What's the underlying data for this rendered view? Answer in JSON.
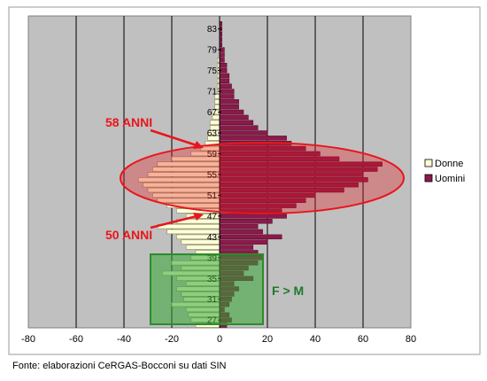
{
  "chart_data": {
    "type": "bar",
    "orientation": "horizontal-population-pyramid",
    "xlim": [
      -80,
      80
    ],
    "x_ticks": [
      -80,
      -60,
      -40,
      -20,
      0,
      20,
      40,
      60,
      80
    ],
    "y_range": [
      26,
      85
    ],
    "y_tick_labels": [
      27,
      31,
      35,
      39,
      43,
      47,
      51,
      55,
      59,
      63,
      67,
      71,
      75,
      79,
      83
    ],
    "grid": true,
    "legend_position": "right",
    "series": [
      {
        "name": "Donne",
        "color": "#ffffd9",
        "ages": [
          26,
          27,
          28,
          29,
          30,
          31,
          32,
          33,
          34,
          35,
          36,
          37,
          38,
          39,
          40,
          41,
          42,
          43,
          44,
          45,
          46,
          47,
          48,
          49,
          50,
          51,
          52,
          53,
          54,
          55,
          56,
          57,
          58,
          59,
          60,
          61,
          62,
          63,
          64,
          65,
          66,
          67,
          68,
          69,
          70,
          71,
          72,
          73,
          74,
          75,
          76,
          77,
          78,
          79,
          80,
          81,
          82,
          83,
          84,
          85
        ],
        "values": [
          -10,
          -12,
          -13,
          -14,
          -20,
          -15,
          -16,
          -18,
          -14,
          -18,
          -24,
          -16,
          -20,
          -12,
          -10,
          -14,
          -16,
          -18,
          -22,
          -26,
          -18,
          -14,
          -18,
          -22,
          -26,
          -28,
          -30,
          -32,
          -34,
          -30,
          -28,
          -26,
          -20,
          -12,
          -8,
          -6,
          -5,
          -5,
          -4,
          -4,
          -3,
          -3,
          -2,
          -2,
          -2,
          -1,
          -1,
          -1,
          -1,
          -1,
          -1,
          -1,
          0,
          0,
          0,
          0,
          0,
          0,
          0,
          0
        ]
      },
      {
        "name": "Uomini",
        "color": "#8b1a4a",
        "ages": [
          26,
          27,
          28,
          29,
          30,
          31,
          32,
          33,
          34,
          35,
          36,
          37,
          38,
          39,
          40,
          41,
          42,
          43,
          44,
          45,
          46,
          47,
          48,
          49,
          50,
          51,
          52,
          53,
          54,
          55,
          56,
          57,
          58,
          59,
          60,
          61,
          62,
          63,
          64,
          65,
          66,
          67,
          68,
          69,
          70,
          71,
          72,
          73,
          74,
          75,
          76,
          77,
          78,
          79,
          80,
          81,
          82,
          83,
          84,
          85
        ],
        "values": [
          3,
          5,
          4,
          2,
          4,
          5,
          6,
          8,
          6,
          14,
          10,
          12,
          16,
          18,
          16,
          14,
          20,
          26,
          18,
          16,
          22,
          28,
          26,
          32,
          36,
          40,
          52,
          58,
          62,
          60,
          66,
          68,
          50,
          42,
          36,
          30,
          28,
          20,
          16,
          14,
          12,
          10,
          8,
          8,
          6,
          6,
          5,
          4,
          4,
          3,
          3,
          2,
          2,
          2,
          1,
          1,
          1,
          1,
          1,
          0
        ]
      }
    ],
    "annotations": [
      {
        "text": "58 ANNI"
      },
      {
        "text": "50 ANNI"
      },
      {
        "text": "F > M"
      }
    ]
  },
  "legend": {
    "items": [
      {
        "label": "Donne"
      },
      {
        "label": "Uomini"
      }
    ]
  },
  "source_note": "Fonte: elaborazioni CeRGAS-Bocconi su dati SIN",
  "colors": {
    "plot_bg": "#c0c0c0",
    "donne": "#ffffd9",
    "uomini": "#8b1a4a",
    "highlight_red": "#e8161b",
    "highlight_green": "#33a533"
  }
}
